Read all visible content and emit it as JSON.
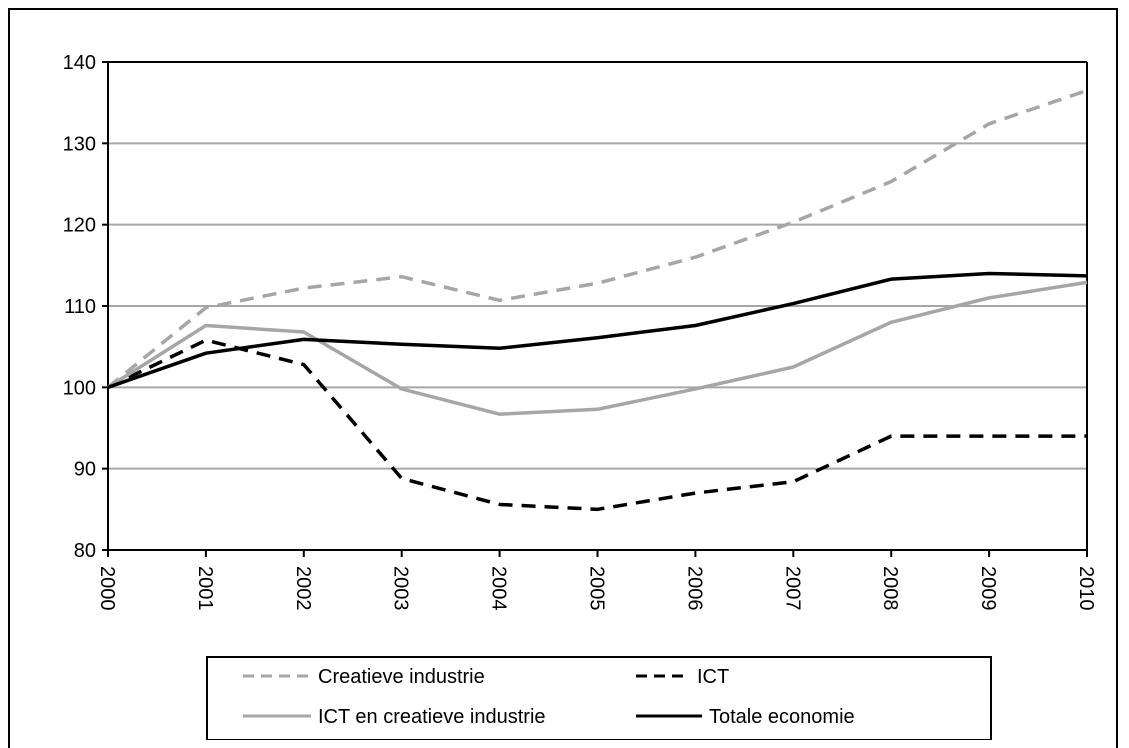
{
  "chart_data": {
    "type": "line",
    "x": [
      "2000",
      "2001",
      "2002",
      "2003",
      "2004",
      "2005",
      "2006",
      "2007",
      "2008",
      "2009",
      "2010"
    ],
    "ylim": [
      80,
      140
    ],
    "yticks": [
      80,
      90,
      100,
      110,
      120,
      130,
      140
    ],
    "grid": true,
    "legend_position": "bottom",
    "series": [
      {
        "name": "Creatieve industrie",
        "color": "#a6a6a6",
        "dash": "dashed",
        "values": [
          100,
          109.8,
          112.2,
          113.6,
          110.7,
          112.8,
          116,
          120.3,
          125.3,
          132.4,
          136.5
        ]
      },
      {
        "name": "ICT",
        "color": "#000000",
        "dash": "dashed",
        "values": [
          100,
          105.8,
          102.8,
          88.8,
          85.6,
          85,
          87,
          88.4,
          94,
          94,
          94
        ]
      },
      {
        "name": "ICT en creatieve industrie",
        "color": "#a6a6a6",
        "dash": "solid",
        "values": [
          100,
          107.6,
          106.8,
          99.8,
          96.7,
          97.3,
          99.8,
          102.5,
          108,
          111,
          112.9
        ]
      },
      {
        "name": "Totale economie",
        "color": "#000000",
        "dash": "solid",
        "values": [
          100,
          104.2,
          105.9,
          105.3,
          104.8,
          106.1,
          107.6,
          110.3,
          113.3,
          114,
          113.7
        ]
      }
    ]
  }
}
